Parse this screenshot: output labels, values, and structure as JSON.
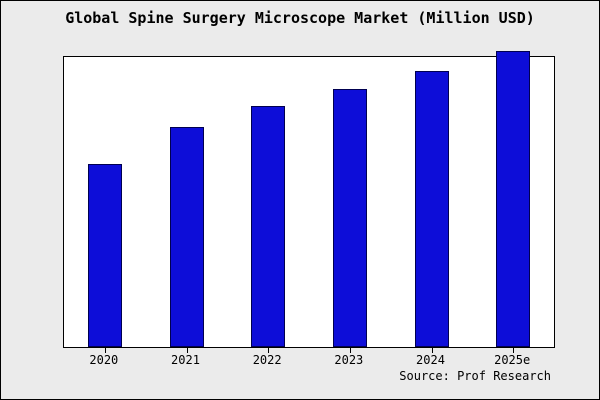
{
  "title": "Global Spine Surgery Microscope Market (Million USD)",
  "source": "Source: Prof Research",
  "colors": {
    "bar_fill": "#0d0dd8",
    "bar_border": "#000050",
    "figure_background": "#ebebeb",
    "plot_background": "#ffffff",
    "frame": "#000000"
  },
  "chart_data": {
    "type": "bar",
    "title": "Global Spine Surgery Microscope Market (Million USD)",
    "categories": [
      "2020",
      "2021",
      "2022",
      "2023",
      "2024",
      "2025e"
    ],
    "values": [
      63,
      76,
      83,
      89,
      95,
      102
    ],
    "xlabel": "",
    "ylabel": "",
    "ylim": [
      0,
      100
    ],
    "grid": false,
    "legend": false,
    "y_axis_ticks_visible": false,
    "annotation": "Source: Prof Research"
  }
}
